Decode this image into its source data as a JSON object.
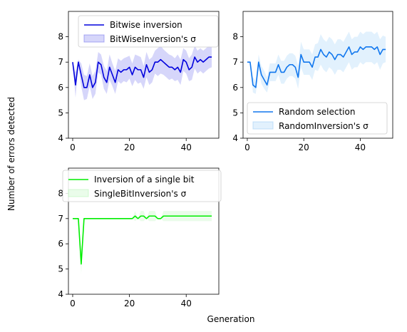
{
  "figure": {
    "xlabel": "Generation",
    "ylabel": "Number of errors detected"
  },
  "chart_data": [
    {
      "type": "line",
      "line_color": "#0000dd",
      "band_color": "#7777ee",
      "xlim": [
        -1.5,
        51.5
      ],
      "ylim": [
        4,
        9
      ],
      "xticks": [
        0,
        20,
        40
      ],
      "yticks": [
        4,
        5,
        6,
        7,
        8
      ],
      "legend_position": "top-right",
      "series": [
        {
          "name": "Bitwise inversion",
          "band_name": "BitWiseInversion's σ",
          "x": [
            0,
            1,
            2,
            3,
            4,
            5,
            6,
            7,
            8,
            9,
            10,
            11,
            12,
            13,
            14,
            15,
            16,
            17,
            18,
            19,
            20,
            21,
            22,
            23,
            24,
            25,
            26,
            27,
            28,
            29,
            30,
            31,
            32,
            33,
            34,
            35,
            36,
            37,
            38,
            39,
            40,
            41,
            42,
            43,
            44,
            45,
            46,
            47,
            48,
            49
          ],
          "y": [
            7.0,
            6.1,
            7.0,
            6.5,
            6.0,
            6.0,
            6.5,
            6.0,
            6.2,
            7.0,
            6.9,
            6.4,
            6.2,
            6.8,
            6.5,
            6.2,
            6.7,
            6.6,
            6.7,
            6.7,
            6.8,
            6.5,
            6.8,
            6.7,
            6.7,
            6.4,
            6.9,
            6.6,
            6.7,
            7.0,
            7.0,
            7.1,
            7.0,
            6.9,
            6.8,
            6.8,
            6.7,
            6.8,
            6.6,
            7.1,
            7.0,
            6.7,
            6.8,
            7.2,
            7.0,
            7.1,
            7.0,
            7.1,
            7.2,
            7.2
          ],
          "sd": [
            0.0,
            0.5,
            0.1,
            0.45,
            0.5,
            0.45,
            0.45,
            0.45,
            0.45,
            0.4,
            0.4,
            0.45,
            0.45,
            0.5,
            0.45,
            0.45,
            0.45,
            0.45,
            0.45,
            0.5,
            0.45,
            0.45,
            0.5,
            0.55,
            0.5,
            0.45,
            0.5,
            0.5,
            0.5,
            0.45,
            0.55,
            0.55,
            0.5,
            0.5,
            0.5,
            0.45,
            0.45,
            0.5,
            0.5,
            0.45,
            0.45,
            0.45,
            0.5,
            0.45,
            0.45,
            0.45,
            0.45,
            0.45,
            0.45,
            0.4
          ]
        }
      ]
    },
    {
      "type": "line",
      "line_color": "#1177ee",
      "band_color": "#9fcff7",
      "xlim": [
        -1.5,
        51.5
      ],
      "ylim": [
        4,
        9
      ],
      "xticks": [
        0,
        20,
        40
      ],
      "yticks": [
        4,
        5,
        6,
        7,
        8
      ],
      "legend_position": "bottom-right",
      "series": [
        {
          "name": "Random selection",
          "band_name": "RandomInversion's σ",
          "x": [
            0,
            1,
            2,
            3,
            4,
            5,
            6,
            7,
            8,
            9,
            10,
            11,
            12,
            13,
            14,
            15,
            16,
            17,
            18,
            19,
            20,
            21,
            22,
            23,
            24,
            25,
            26,
            27,
            28,
            29,
            30,
            31,
            32,
            33,
            34,
            35,
            36,
            37,
            38,
            39,
            40,
            41,
            42,
            43,
            44,
            45,
            46,
            47,
            48,
            49
          ],
          "y": [
            7.0,
            7.0,
            6.1,
            6.0,
            7.0,
            6.5,
            6.3,
            6.1,
            6.6,
            6.6,
            6.6,
            6.9,
            6.6,
            6.6,
            6.8,
            6.9,
            6.9,
            6.8,
            6.4,
            7.3,
            7.0,
            7.0,
            7.0,
            6.8,
            7.2,
            7.2,
            7.5,
            7.3,
            7.2,
            7.4,
            7.3,
            7.1,
            7.3,
            7.3,
            7.2,
            7.4,
            7.6,
            7.3,
            7.4,
            7.4,
            7.6,
            7.5,
            7.6,
            7.6,
            7.6,
            7.5,
            7.6,
            7.3,
            7.5,
            7.5
          ],
          "sd": [
            0.0,
            0.0,
            0.3,
            0.25,
            0.3,
            0.35,
            0.35,
            0.3,
            0.35,
            0.35,
            0.35,
            0.4,
            0.45,
            0.45,
            0.45,
            0.45,
            0.45,
            0.45,
            0.45,
            0.5,
            0.5,
            0.5,
            0.5,
            0.5,
            0.5,
            0.55,
            0.6,
            0.6,
            0.6,
            0.6,
            0.6,
            0.6,
            0.6,
            0.6,
            0.6,
            0.6,
            0.6,
            0.6,
            0.6,
            0.6,
            0.6,
            0.6,
            0.6,
            0.6,
            0.6,
            0.6,
            0.6,
            0.6,
            0.55,
            0.5
          ]
        }
      ]
    },
    {
      "type": "line",
      "line_color": "#00ee00",
      "band_color": "#b8f5b8",
      "xlim": [
        -1.5,
        51.5
      ],
      "ylim": [
        4,
        9
      ],
      "xticks": [
        0,
        20,
        40
      ],
      "yticks": [
        4,
        5,
        6,
        7,
        8
      ],
      "legend_position": "top-right",
      "series": [
        {
          "name": "Inversion of a single bit",
          "band_name": "SingleBitInversion's σ",
          "x": [
            0,
            1,
            2,
            3,
            4,
            5,
            6,
            7,
            8,
            9,
            10,
            11,
            12,
            13,
            14,
            15,
            16,
            17,
            18,
            19,
            20,
            21,
            22,
            23,
            24,
            25,
            26,
            27,
            28,
            29,
            30,
            31,
            32,
            33,
            34,
            35,
            36,
            37,
            38,
            39,
            40,
            41,
            42,
            43,
            44,
            45,
            46,
            47,
            48,
            49
          ],
          "y": [
            7.0,
            7.0,
            7.0,
            5.2,
            7.0,
            7.0,
            7.0,
            7.0,
            7.0,
            7.0,
            7.0,
            7.0,
            7.0,
            7.0,
            7.0,
            7.0,
            7.0,
            7.0,
            7.0,
            7.0,
            7.0,
            7.0,
            7.1,
            7.0,
            7.1,
            7.1,
            7.0,
            7.1,
            7.1,
            7.1,
            7.0,
            7.0,
            7.1,
            7.1,
            7.1,
            7.1,
            7.1,
            7.1,
            7.1,
            7.1,
            7.1,
            7.1,
            7.1,
            7.1,
            7.1,
            7.1,
            7.1,
            7.1,
            7.1,
            7.1
          ],
          "sd": [
            0.0,
            0.0,
            0.0,
            0.4,
            0.0,
            0.0,
            0.0,
            0.0,
            0.0,
            0.0,
            0.0,
            0.0,
            0.0,
            0.0,
            0.0,
            0.0,
            0.0,
            0.0,
            0.0,
            0.0,
            0.0,
            0.0,
            0.2,
            0.0,
            0.2,
            0.2,
            0.0,
            0.2,
            0.2,
            0.2,
            0.0,
            0.0,
            0.2,
            0.2,
            0.2,
            0.2,
            0.2,
            0.2,
            0.2,
            0.2,
            0.2,
            0.2,
            0.2,
            0.2,
            0.2,
            0.2,
            0.2,
            0.2,
            0.2,
            0.2
          ]
        }
      ]
    }
  ]
}
